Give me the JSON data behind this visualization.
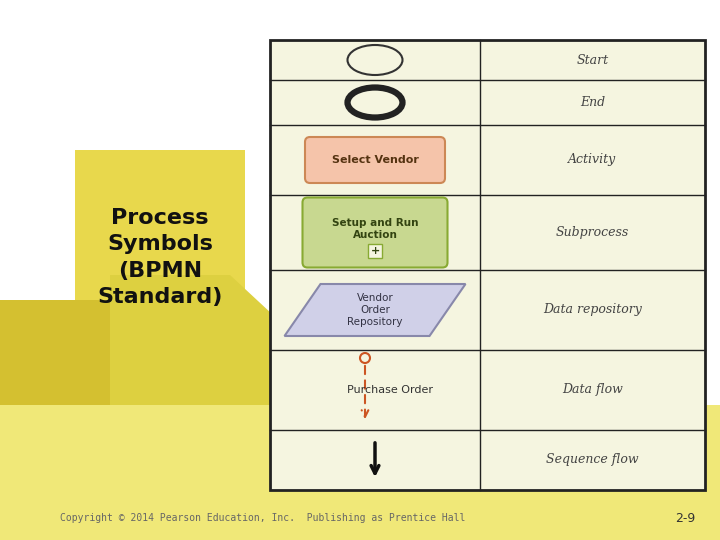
{
  "bg_color": "#ffffff",
  "yellow_title_bg": "#e8d84a",
  "yellow_bottom_bg": "#f0e87a",
  "yellow_bottom_light": "#f5f0a8",
  "table_bg": "#f5f5e0",
  "table_border": "#222222",
  "title_text": "Process\nSymbols\n(BPMN\nStandard)",
  "title_fontsize": 16,
  "copyright_text": "Copyright © 2014 Pearson Education, Inc.  Publishing as Prentice Hall",
  "page_num": "2-9",
  "row_labels": [
    "Start",
    "End",
    "Activity",
    "Subprocess",
    "Data repository",
    "Data flow",
    "Sequence flow"
  ],
  "activity_text": "Select Vendor",
  "subprocess_line1": "Setup and Run",
  "subprocess_line2": "Auction",
  "data_repo_text": "Vendor\nOrder\nRepository",
  "data_flow_text": "Purchase Order",
  "salmon_color": "#f5c4aa",
  "salmon_border": "#cc8855",
  "green_color": "#c8d890",
  "green_border": "#88aa33",
  "parallelogram_color": "#d0d0e8",
  "parallelogram_border": "#8888aa",
  "dashed_arrow_color": "#cc5522",
  "solid_arrow_color": "#111111",
  "label_color": "#444444",
  "label_fontsize": 9
}
